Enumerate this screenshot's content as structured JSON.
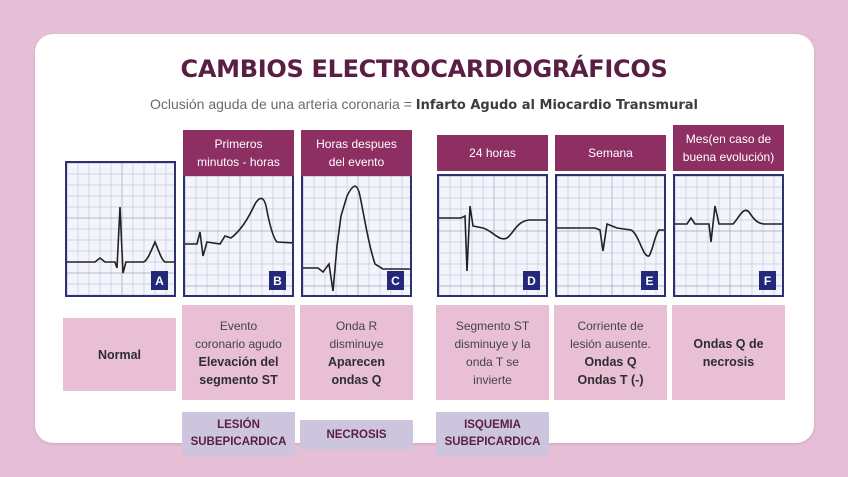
{
  "title": "CAMBIOS ELECTROCARDIOGRÁFICOS",
  "subtitle": {
    "prefix": "Oclusión aguda de una arteria coronaria = ",
    "bold": "Infarto Agudo al Miocardio Transmural"
  },
  "panels": [
    {
      "id": "A",
      "header": "",
      "desc": [
        {
          "text": "Normal",
          "bold": true
        }
      ],
      "tag": []
    },
    {
      "id": "B",
      "header": [
        "Primeros",
        "minutos - horas"
      ],
      "desc": [
        {
          "text": "Evento",
          "bold": false
        },
        {
          "text": "coronario agudo",
          "bold": false
        },
        {
          "text": "Elevación del",
          "bold": true
        },
        {
          "text": "segmento ST",
          "bold": true
        }
      ],
      "tag": [
        "LESIÓN",
        "SUBEPICARDICA"
      ]
    },
    {
      "id": "C",
      "header": [
        "Horas despues",
        "del evento"
      ],
      "desc": [
        {
          "text": "Onda R",
          "bold": false
        },
        {
          "text": "disminuye",
          "bold": false
        },
        {
          "text": "Aparecen",
          "bold": true
        },
        {
          "text": "ondas Q",
          "bold": true
        }
      ],
      "tag": [
        "NECROSIS"
      ]
    },
    {
      "id": "D",
      "header": [
        "24 horas"
      ],
      "desc": [
        {
          "text": "Segmento ST",
          "bold": false
        },
        {
          "text": "disminuye y la",
          "bold": false
        },
        {
          "text": "onda T se",
          "bold": false
        },
        {
          "text": "invierte",
          "bold": false
        }
      ],
      "tag": [
        "ISQUEMIA",
        "SUBEPICARDICA"
      ]
    },
    {
      "id": "E",
      "header": [
        "Semana"
      ],
      "desc": [
        {
          "text": "Corriente de",
          "bold": false
        },
        {
          "text": "lesión ausente.",
          "bold": false
        },
        {
          "text": "Ondas Q",
          "bold": true
        },
        {
          "text": "Ondas T (-)",
          "bold": true
        }
      ],
      "tag": []
    },
    {
      "id": "F",
      "header": [
        "Mes(en caso de",
        "buena evolución)"
      ],
      "desc": [
        {
          "text": "Ondas Q de",
          "bold": true
        },
        {
          "text": "necrosis",
          "bold": true
        }
      ],
      "tag": []
    }
  ],
  "colors": {
    "background": "#e6bfd6",
    "title": "#5a1e43",
    "header": "#8d2f63",
    "description": "#e8bfd5",
    "tag": "#cdc4de",
    "ecg_border": "#2c3170",
    "ecg_label": "#23287a"
  }
}
